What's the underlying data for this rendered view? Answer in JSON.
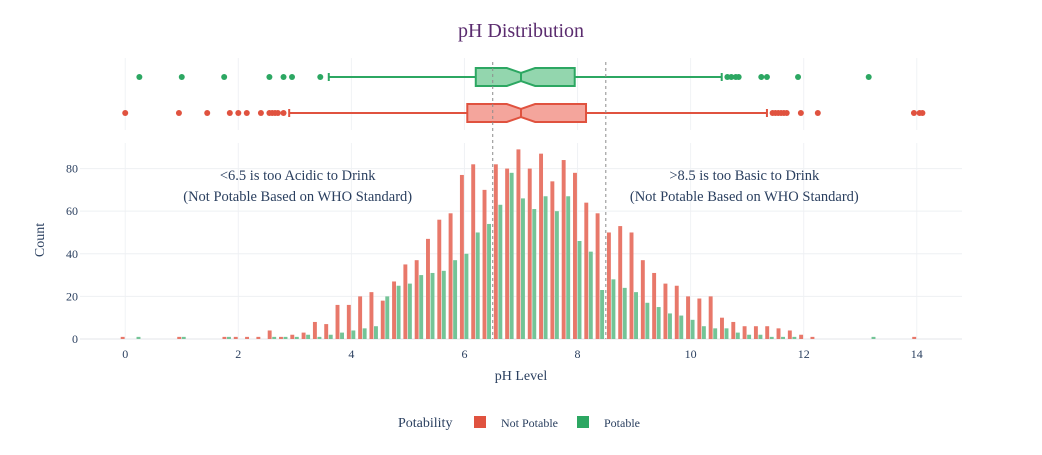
{
  "chart_data": {
    "type": "bar",
    "title": "pH Distribution",
    "xlabel": "pH Level",
    "ylabel": "Count",
    "xlim": [
      -0.8,
      14.8
    ],
    "ylim": [
      0,
      92
    ],
    "x_ticks": [
      0,
      2,
      4,
      6,
      8,
      10,
      12,
      14
    ],
    "y_ticks": [
      0,
      20,
      40,
      60,
      80
    ],
    "bin_centers": [
      0.0,
      0.2,
      1.0,
      1.4,
      1.8,
      2.0,
      2.2,
      2.4,
      2.6,
      2.8,
      3.0,
      3.2,
      3.4,
      3.6,
      3.8,
      4.0,
      4.2,
      4.4,
      4.6,
      4.8,
      5.0,
      5.2,
      5.4,
      5.6,
      5.8,
      6.0,
      6.2,
      6.4,
      6.6,
      6.8,
      7.0,
      7.2,
      7.4,
      7.6,
      7.8,
      8.0,
      8.2,
      8.4,
      8.6,
      8.8,
      9.0,
      9.2,
      9.4,
      9.6,
      9.8,
      10.0,
      10.2,
      10.4,
      10.6,
      10.8,
      11.0,
      11.2,
      11.4,
      11.6,
      11.8,
      12.0,
      12.2,
      13.2,
      14.0
    ],
    "series": [
      {
        "name": "Not Potable",
        "color": "#e8786a",
        "values": [
          1,
          0,
          1,
          0,
          1,
          1,
          1,
          1,
          4,
          1,
          2,
          3,
          8,
          7,
          16,
          16,
          20,
          22,
          18,
          27,
          35,
          37,
          47,
          56,
          59,
          77,
          82,
          70,
          82,
          80,
          89,
          80,
          87,
          74,
          84,
          78,
          64,
          59,
          50,
          53,
          50,
          37,
          31,
          26,
          25,
          20,
          19,
          20,
          10,
          8,
          6,
          6,
          6,
          5,
          4,
          2,
          1,
          0,
          1
        ]
      },
      {
        "name": "Potable",
        "color": "#74c497",
        "values": [
          0,
          1,
          1,
          0,
          1,
          0,
          0,
          0,
          1,
          1,
          1,
          2,
          1,
          2,
          3,
          4,
          5,
          6,
          20,
          25,
          26,
          30,
          31,
          32,
          37,
          40,
          50,
          54,
          63,
          78,
          66,
          61,
          67,
          60,
          67,
          46,
          41,
          23,
          28,
          24,
          22,
          17,
          15,
          12,
          11,
          9,
          6,
          5,
          5,
          3,
          2,
          2,
          1,
          1,
          1,
          0,
          0,
          1,
          0
        ]
      }
    ],
    "boxplots": [
      {
        "name": "Potable",
        "color": "#2ca762",
        "fill": "#93d6ae",
        "lower_fence": 3.6,
        "q1": 6.2,
        "median": 7.0,
        "q3": 7.95,
        "upper_fence": 10.55,
        "outliers": [
          0.25,
          1.0,
          1.75,
          2.55,
          2.8,
          2.95,
          3.45,
          10.65,
          10.72,
          10.8,
          10.85,
          11.25,
          11.35,
          11.9,
          13.15
        ]
      },
      {
        "name": "Not Potable",
        "color": "#e0523f",
        "fill": "#f4a59c",
        "lower_fence": 2.9,
        "q1": 6.05,
        "median": 7.0,
        "q3": 8.15,
        "upper_fence": 11.35,
        "outliers": [
          0.0,
          0.95,
          1.45,
          1.85,
          2.0,
          2.15,
          2.4,
          2.55,
          2.6,
          2.65,
          2.7,
          2.8,
          11.45,
          11.5,
          11.55,
          11.6,
          11.65,
          11.7,
          11.95,
          12.25,
          13.95,
          14.1,
          14.05
        ]
      }
    ],
    "reference_lines": [
      6.5,
      8.5
    ],
    "annotations": [
      {
        "x": 3.05,
        "lines": [
          "<6.5 is too Acidic to Drink",
          "(Not Potable Based on WHO Standard)"
        ]
      },
      {
        "x": 10.95,
        "lines": [
          ">8.5 is too Basic to Drink",
          "(Not Potable Based on WHO Standard)"
        ]
      }
    ],
    "legend": {
      "title": "Potability",
      "placement": "bottom-center",
      "items": [
        {
          "label": "Not Potable",
          "color": "#e0523f"
        },
        {
          "label": "Potable",
          "color": "#2ca762"
        }
      ]
    },
    "grid": true
  }
}
